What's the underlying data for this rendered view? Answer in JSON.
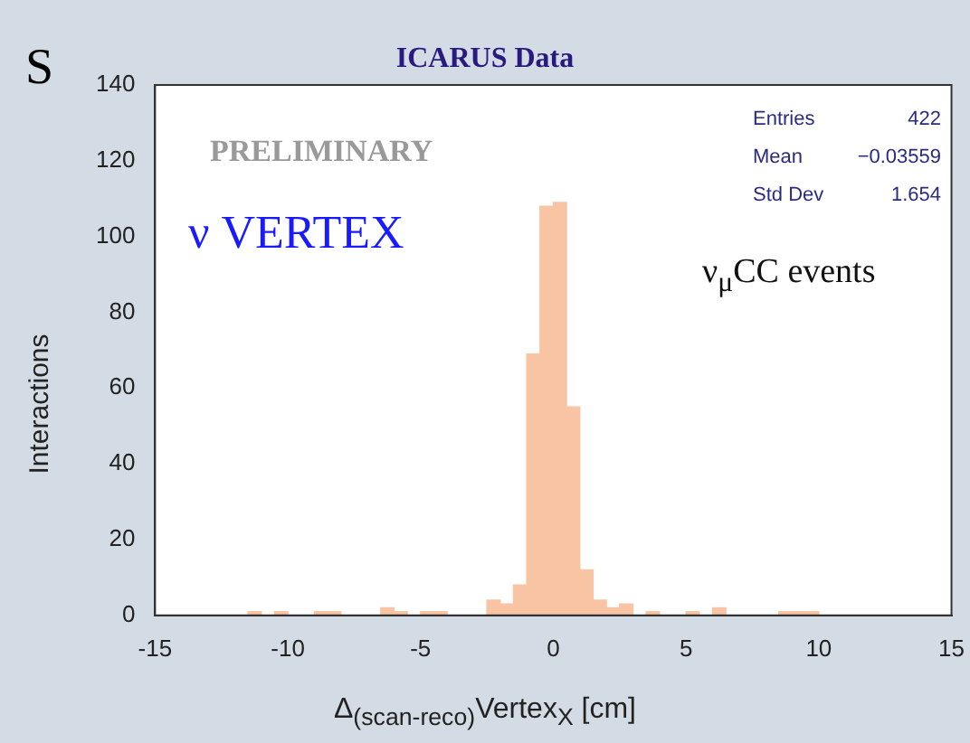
{
  "chart_data": {
    "type": "histogram",
    "title": "ICARUS Data",
    "xlabel": "Δ$_{(scan-reco)}$Vertex$_{X}$ [cm]",
    "ylabel": "Interactions",
    "annotations": [
      "S",
      "PRELIMINARY",
      "ν VERTEX",
      "ν$_{μ}$CC events",
      "Entries 422",
      "Mean −0.03559",
      "Std Dev 1.654"
    ],
    "bins": [
      -15,
      -14.5,
      -14,
      -13.5,
      -13,
      -12.5,
      -12,
      -11.5,
      -11,
      -10.5,
      -10,
      -9.5,
      -9,
      -8.5,
      -8,
      -7.5,
      -7,
      -6.5,
      -6,
      -5.5,
      -5,
      -4.5,
      -4,
      -3.5,
      -3,
      -2.5,
      -2,
      -1.5,
      -1,
      -0.5,
      0,
      0.5,
      1,
      1.5,
      2,
      2.5,
      3,
      3.5,
      4,
      4.5,
      5,
      5.5,
      6,
      6.5,
      7,
      7.5,
      8,
      8.5,
      9,
      9.5,
      10,
      10.5,
      11,
      11.5,
      12,
      12.5,
      13,
      13.5,
      14,
      14.5,
      15
    ],
    "values": [
      0,
      0,
      0,
      0,
      0,
      0,
      0,
      1,
      0,
      1,
      0,
      0,
      1,
      1,
      0,
      0,
      0,
      2,
      1,
      0,
      1,
      1,
      0,
      0,
      0,
      4,
      3,
      8,
      69,
      108,
      109,
      55,
      12,
      4,
      2,
      3,
      0,
      1,
      0,
      0,
      1,
      0,
      2,
      0,
      0,
      0,
      0,
      1,
      1,
      1,
      0,
      0,
      0,
      0,
      0,
      0,
      0,
      0,
      0,
      0
    ],
    "color": "#f9c4a4",
    "xlim": [
      -15,
      15
    ],
    "xticks": [
      -15,
      -10,
      -5,
      0,
      5,
      10,
      15
    ],
    "ylim": [
      0,
      140
    ],
    "yticks": [
      0,
      20,
      40,
      60,
      80,
      100,
      120,
      140
    ],
    "grid": false,
    "legend": false
  }
}
